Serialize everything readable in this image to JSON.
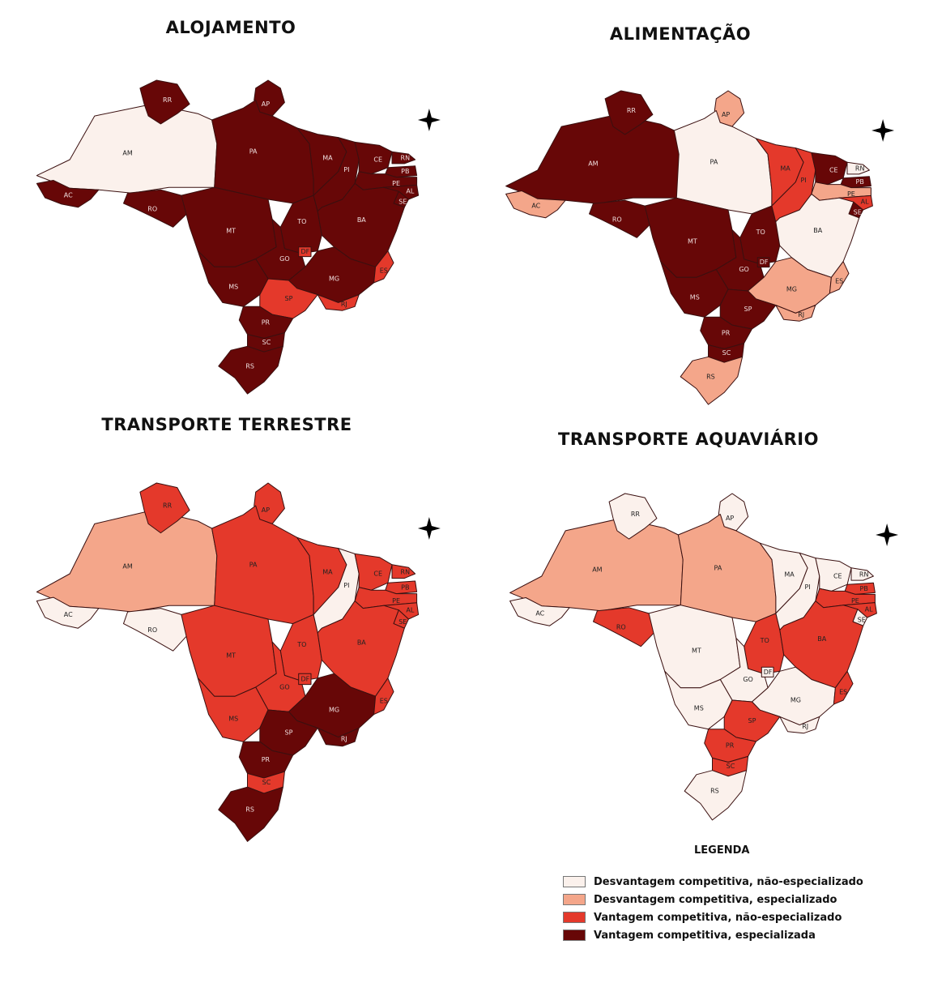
{
  "maps": [
    {
      "title": "ALOJAMENTO",
      "states": {
        "AM": "nao_esp_desv",
        "RR": "esp_vant",
        "AP": "esp_vant",
        "PA": "esp_vant",
        "AC": "esp_vant",
        "RO": "esp_vant",
        "MT": "esp_vant",
        "TO": "esp_vant",
        "MA": "esp_vant",
        "PI": "esp_vant",
        "CE": "esp_vant",
        "RN": "esp_vant",
        "PB": "esp_vant",
        "PE": "esp_vant",
        "AL": "esp_vant",
        "SE": "esp_vant",
        "BA": "esp_vant",
        "GO": "esp_vant",
        "DF": "nao_esp_vant",
        "MG": "esp_vant",
        "ES": "nao_esp_vant",
        "MS": "esp_vant",
        "SP": "nao_esp_vant",
        "RJ": "nao_esp_vant",
        "PR": "esp_vant",
        "SC": "esp_vant",
        "RS": "esp_vant"
      }
    },
    {
      "title": "ALIMENTAÇÃO",
      "states": {
        "AM": "esp_vant",
        "RR": "esp_vant",
        "AP": "esp_desv",
        "PA": "nao_esp_desv",
        "AC": "esp_desv",
        "RO": "esp_vant",
        "MT": "esp_vant",
        "TO": "esp_vant",
        "MA": "nao_esp_vant",
        "PI": "nao_esp_vant",
        "CE": "esp_vant",
        "RN": "nao_esp_desv",
        "PB": "esp_vant",
        "PE": "esp_desv",
        "AL": "nao_esp_vant",
        "SE": "esp_vant",
        "BA": "nao_esp_desv",
        "GO": "esp_vant",
        "DF": "esp_vant",
        "MG": "esp_desv",
        "ES": "esp_desv",
        "MS": "esp_vant",
        "SP": "esp_vant",
        "RJ": "esp_desv",
        "PR": "esp_vant",
        "SC": "esp_vant",
        "RS": "esp_desv"
      }
    },
    {
      "title": "TRANSPORTE TERRESTRE",
      "states": {
        "AM": "esp_desv",
        "RR": "nao_esp_vant",
        "AP": "nao_esp_vant",
        "PA": "nao_esp_vant",
        "AC": "nao_esp_desv",
        "RO": "nao_esp_desv",
        "MT": "nao_esp_vant",
        "TO": "nao_esp_vant",
        "MA": "nao_esp_vant",
        "PI": "nao_esp_desv",
        "CE": "nao_esp_vant",
        "RN": "nao_esp_vant",
        "PB": "nao_esp_vant",
        "PE": "nao_esp_vant",
        "AL": "nao_esp_vant",
        "SE": "nao_esp_vant",
        "BA": "nao_esp_vant",
        "GO": "nao_esp_vant",
        "DF": "nao_esp_vant",
        "MG": "esp_vant",
        "ES": "nao_esp_vant",
        "MS": "nao_esp_vant",
        "SP": "esp_vant",
        "RJ": "esp_vant",
        "PR": "esp_vant",
        "SC": "nao_esp_vant",
        "RS": "esp_vant"
      }
    },
    {
      "title": "TRANSPORTE AQUAVIÁRIO",
      "states": {
        "AM": "esp_desv",
        "RR": "nao_esp_desv",
        "AP": "nao_esp_desv",
        "PA": "esp_desv",
        "AC": "nao_esp_desv",
        "RO": "nao_esp_vant",
        "MT": "nao_esp_desv",
        "TO": "nao_esp_vant",
        "MA": "nao_esp_desv",
        "PI": "nao_esp_desv",
        "CE": "nao_esp_desv",
        "RN": "nao_esp_desv",
        "PB": "nao_esp_vant",
        "PE": "nao_esp_vant",
        "AL": "nao_esp_vant",
        "SE": "nao_esp_desv",
        "BA": "nao_esp_vant",
        "GO": "nao_esp_desv",
        "DF": "nao_esp_desv",
        "MG": "nao_esp_desv",
        "ES": "nao_esp_vant",
        "MS": "nao_esp_desv",
        "SP": "nao_esp_vant",
        "RJ": "nao_esp_desv",
        "PR": "nao_esp_vant",
        "SC": "nao_esp_vant",
        "RS": "nao_esp_desv"
      }
    }
  ],
  "legend": {
    "title": "LEGENDA",
    "items": [
      {
        "key": "nao_esp_desv",
        "label": "Desvantagem competitiva, não-especializado",
        "color": "#fbf1ec"
      },
      {
        "key": "esp_desv",
        "label": "Desvantagem competitiva, especializado",
        "color": "#f4a68a"
      },
      {
        "key": "nao_esp_vant",
        "label": "Vantagem competitiva, não-especializado",
        "color": "#e4392b"
      },
      {
        "key": "esp_vant",
        "label": "Vantagem competitiva, especializada",
        "color": "#670707"
      }
    ]
  },
  "compass_icon": "north-arrow-icon"
}
